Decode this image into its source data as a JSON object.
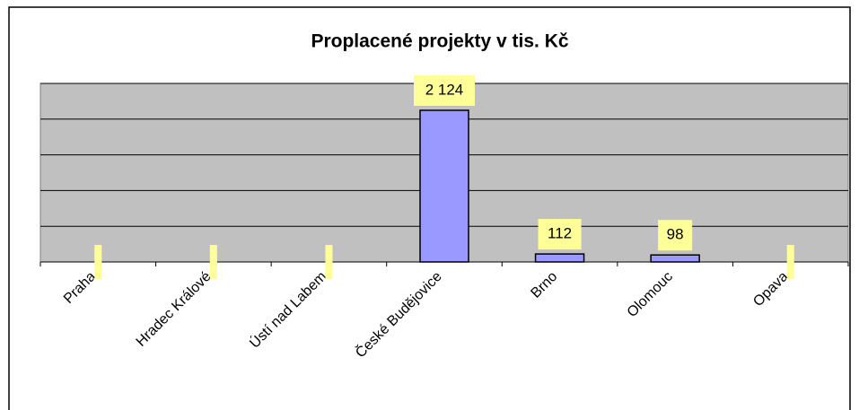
{
  "chart_data": {
    "type": "bar",
    "title": "Proplacené projekty v tis. Kč",
    "categories": [
      "Praha",
      "Hradec Králové",
      "Ústí nad Labem",
      "České Budějovice",
      "Brno",
      "Olomouc",
      "Opava"
    ],
    "values": [
      0,
      0,
      0,
      2124,
      112,
      98,
      0
    ],
    "value_labels": [
      null,
      null,
      null,
      "2 124",
      "112",
      "98",
      null
    ],
    "color": "#9999ff",
    "label_color": "#ffff99",
    "plot_color": "#c0c0c0",
    "ylim": [
      0,
      2500
    ],
    "yticks": [
      0,
      500,
      1000,
      1500,
      2000,
      2500
    ],
    "grid": true
  }
}
